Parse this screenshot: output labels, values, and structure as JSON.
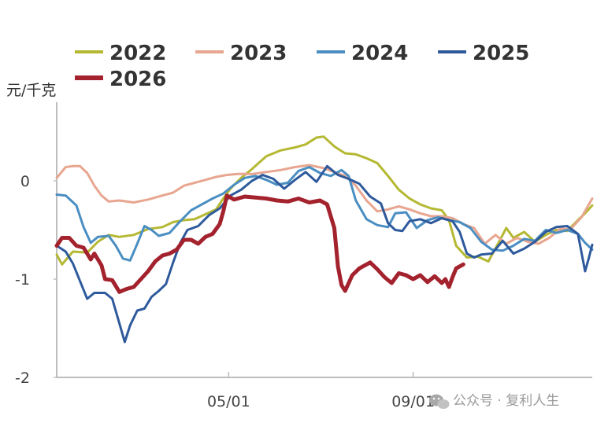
{
  "chart_data": {
    "type": "line",
    "ylabel": "元/千克",
    "ylim": [
      -2,
      0.8
    ],
    "xlim": [
      1,
      300
    ],
    "yticks": [
      {
        "value": 0,
        "label": "0"
      },
      {
        "value": -1,
        "label": "-1"
      },
      {
        "value": -2,
        "label": "-2"
      }
    ],
    "xticks": [
      {
        "value": 97,
        "label": "05/01"
      },
      {
        "value": 200,
        "label": "09/01"
      }
    ],
    "legend": "top",
    "grid": false,
    "series": [
      {
        "name": "2022",
        "color": "#b5b832",
        "width": 3,
        "points": [
          [
            1,
            -0.75
          ],
          [
            4,
            -0.85
          ],
          [
            10,
            -0.72
          ],
          [
            18,
            -0.73
          ],
          [
            24,
            -0.62
          ],
          [
            30,
            -0.55
          ],
          [
            36,
            -0.57
          ],
          [
            44,
            -0.55
          ],
          [
            52,
            -0.49
          ],
          [
            60,
            -0.47
          ],
          [
            66,
            -0.42
          ],
          [
            72,
            -0.4
          ],
          [
            78,
            -0.39
          ],
          [
            84,
            -0.34
          ],
          [
            90,
            -0.29
          ],
          [
            94,
            -0.18
          ],
          [
            98,
            -0.08
          ],
          [
            104,
            0.03
          ],
          [
            110,
            0.12
          ],
          [
            118,
            0.25
          ],
          [
            126,
            0.31
          ],
          [
            134,
            0.34
          ],
          [
            140,
            0.37
          ],
          [
            146,
            0.44
          ],
          [
            150,
            0.45
          ],
          [
            156,
            0.35
          ],
          [
            162,
            0.28
          ],
          [
            168,
            0.27
          ],
          [
            174,
            0.23
          ],
          [
            180,
            0.18
          ],
          [
            186,
            0.05
          ],
          [
            192,
            -0.09
          ],
          [
            198,
            -0.18
          ],
          [
            204,
            -0.24
          ],
          [
            210,
            -0.28
          ],
          [
            216,
            -0.3
          ],
          [
            220,
            -0.4
          ],
          [
            224,
            -0.66
          ],
          [
            230,
            -0.78
          ],
          [
            236,
            -0.77
          ],
          [
            242,
            -0.82
          ],
          [
            248,
            -0.62
          ],
          [
            252,
            -0.48
          ],
          [
            256,
            -0.58
          ],
          [
            262,
            -0.52
          ],
          [
            268,
            -0.62
          ],
          [
            274,
            -0.55
          ],
          [
            280,
            -0.5
          ],
          [
            286,
            -0.51
          ],
          [
            292,
            -0.4
          ],
          [
            296,
            -0.33
          ],
          [
            300,
            -0.25
          ]
        ]
      },
      {
        "name": "2023",
        "color": "#e8a690",
        "width": 3,
        "points": [
          [
            1,
            0.03
          ],
          [
            6,
            0.14
          ],
          [
            10,
            0.15
          ],
          [
            14,
            0.15
          ],
          [
            18,
            0.08
          ],
          [
            22,
            -0.05
          ],
          [
            26,
            -0.15
          ],
          [
            30,
            -0.21
          ],
          [
            36,
            -0.2
          ],
          [
            44,
            -0.22
          ],
          [
            52,
            -0.19
          ],
          [
            60,
            -0.15
          ],
          [
            66,
            -0.12
          ],
          [
            72,
            -0.05
          ],
          [
            78,
            -0.02
          ],
          [
            84,
            0.01
          ],
          [
            90,
            0.04
          ],
          [
            96,
            0.06
          ],
          [
            102,
            0.07
          ],
          [
            110,
            0.07
          ],
          [
            118,
            0.09
          ],
          [
            126,
            0.11
          ],
          [
            134,
            0.14
          ],
          [
            142,
            0.16
          ],
          [
            150,
            0.13
          ],
          [
            156,
            0.09
          ],
          [
            162,
            0.05
          ],
          [
            168,
            -0.05
          ],
          [
            174,
            -0.2
          ],
          [
            180,
            -0.31
          ],
          [
            186,
            -0.29
          ],
          [
            192,
            -0.26
          ],
          [
            198,
            -0.29
          ],
          [
            204,
            -0.33
          ],
          [
            210,
            -0.36
          ],
          [
            216,
            -0.36
          ],
          [
            222,
            -0.38
          ],
          [
            228,
            -0.44
          ],
          [
            234,
            -0.48
          ],
          [
            240,
            -0.64
          ],
          [
            246,
            -0.55
          ],
          [
            252,
            -0.64
          ],
          [
            258,
            -0.58
          ],
          [
            264,
            -0.62
          ],
          [
            270,
            -0.64
          ],
          [
            276,
            -0.58
          ],
          [
            282,
            -0.49
          ],
          [
            288,
            -0.49
          ],
          [
            294,
            -0.37
          ],
          [
            300,
            -0.18
          ]
        ]
      },
      {
        "name": "2024",
        "color": "#4a8ec2",
        "width": 3,
        "points": [
          [
            1,
            -0.14
          ],
          [
            6,
            -0.15
          ],
          [
            12,
            -0.25
          ],
          [
            16,
            -0.47
          ],
          [
            20,
            -0.63
          ],
          [
            24,
            -0.57
          ],
          [
            30,
            -0.56
          ],
          [
            34,
            -0.66
          ],
          [
            38,
            -0.79
          ],
          [
            42,
            -0.81
          ],
          [
            46,
            -0.64
          ],
          [
            50,
            -0.46
          ],
          [
            54,
            -0.5
          ],
          [
            58,
            -0.56
          ],
          [
            64,
            -0.53
          ],
          [
            70,
            -0.41
          ],
          [
            76,
            -0.3
          ],
          [
            82,
            -0.24
          ],
          [
            88,
            -0.18
          ],
          [
            94,
            -0.13
          ],
          [
            100,
            -0.04
          ],
          [
            106,
            0.03
          ],
          [
            112,
            0.05
          ],
          [
            118,
            0.01
          ],
          [
            124,
            -0.04
          ],
          [
            130,
            -0.02
          ],
          [
            136,
            0.1
          ],
          [
            142,
            0.14
          ],
          [
            148,
            0.08
          ],
          [
            154,
            0.05
          ],
          [
            160,
            0.11
          ],
          [
            164,
            0.05
          ],
          [
            168,
            -0.2
          ],
          [
            174,
            -0.39
          ],
          [
            180,
            -0.45
          ],
          [
            186,
            -0.47
          ],
          [
            190,
            -0.33
          ],
          [
            196,
            -0.32
          ],
          [
            202,
            -0.48
          ],
          [
            208,
            -0.4
          ],
          [
            214,
            -0.37
          ],
          [
            220,
            -0.4
          ],
          [
            226,
            -0.42
          ],
          [
            232,
            -0.48
          ],
          [
            238,
            -0.62
          ],
          [
            244,
            -0.7
          ],
          [
            250,
            -0.71
          ],
          [
            256,
            -0.66
          ],
          [
            262,
            -0.59
          ],
          [
            268,
            -0.61
          ],
          [
            274,
            -0.5
          ],
          [
            280,
            -0.53
          ],
          [
            286,
            -0.5
          ],
          [
            292,
            -0.54
          ],
          [
            296,
            -0.63
          ],
          [
            300,
            -0.7
          ]
        ]
      },
      {
        "name": "2025",
        "color": "#2e5a9c",
        "width": 3,
        "points": [
          [
            1,
            -0.66
          ],
          [
            6,
            -0.72
          ],
          [
            10,
            -0.84
          ],
          [
            14,
            -1.02
          ],
          [
            18,
            -1.2
          ],
          [
            22,
            -1.14
          ],
          [
            28,
            -1.14
          ],
          [
            32,
            -1.2
          ],
          [
            36,
            -1.45
          ],
          [
            39,
            -1.64
          ],
          [
            42,
            -1.47
          ],
          [
            46,
            -1.32
          ],
          [
            50,
            -1.3
          ],
          [
            54,
            -1.18
          ],
          [
            58,
            -1.12
          ],
          [
            62,
            -1.05
          ],
          [
            66,
            -0.83
          ],
          [
            70,
            -0.63
          ],
          [
            74,
            -0.5
          ],
          [
            80,
            -0.46
          ],
          [
            86,
            -0.35
          ],
          [
            92,
            -0.28
          ],
          [
            98,
            -0.15
          ],
          [
            104,
            -0.09
          ],
          [
            110,
            0.0
          ],
          [
            116,
            0.06
          ],
          [
            122,
            0.02
          ],
          [
            128,
            -0.08
          ],
          [
            134,
            0.01
          ],
          [
            140,
            0.09
          ],
          [
            146,
            -0.01
          ],
          [
            152,
            0.15
          ],
          [
            158,
            0.06
          ],
          [
            164,
            0.02
          ],
          [
            170,
            -0.03
          ],
          [
            176,
            -0.16
          ],
          [
            182,
            -0.23
          ],
          [
            186,
            -0.43
          ],
          [
            190,
            -0.5
          ],
          [
            194,
            -0.51
          ],
          [
            198,
            -0.41
          ],
          [
            204,
            -0.39
          ],
          [
            210,
            -0.43
          ],
          [
            216,
            -0.38
          ],
          [
            222,
            -0.41
          ],
          [
            226,
            -0.52
          ],
          [
            230,
            -0.74
          ],
          [
            234,
            -0.78
          ],
          [
            238,
            -0.75
          ],
          [
            244,
            -0.74
          ],
          [
            250,
            -0.61
          ],
          [
            256,
            -0.74
          ],
          [
            262,
            -0.69
          ],
          [
            268,
            -0.62
          ],
          [
            274,
            -0.52
          ],
          [
            280,
            -0.47
          ],
          [
            286,
            -0.46
          ],
          [
            292,
            -0.54
          ],
          [
            296,
            -0.92
          ],
          [
            298,
            -0.79
          ],
          [
            300,
            -0.65
          ]
        ]
      },
      {
        "name": "2026",
        "color": "#a3222d",
        "width": 5,
        "points": [
          [
            1,
            -0.66
          ],
          [
            4,
            -0.58
          ],
          [
            8,
            -0.58
          ],
          [
            12,
            -0.66
          ],
          [
            16,
            -0.68
          ],
          [
            20,
            -0.8
          ],
          [
            22,
            -0.74
          ],
          [
            26,
            -0.86
          ],
          [
            28,
            -1.0
          ],
          [
            32,
            -1.01
          ],
          [
            36,
            -1.13
          ],
          [
            40,
            -1.1
          ],
          [
            44,
            -1.08
          ],
          [
            48,
            -1.0
          ],
          [
            52,
            -0.92
          ],
          [
            56,
            -0.82
          ],
          [
            60,
            -0.76
          ],
          [
            64,
            -0.74
          ],
          [
            68,
            -0.7
          ],
          [
            72,
            -0.6
          ],
          [
            76,
            -0.6
          ],
          [
            80,
            -0.64
          ],
          [
            84,
            -0.57
          ],
          [
            88,
            -0.54
          ],
          [
            92,
            -0.44
          ],
          [
            94,
            -0.31
          ],
          [
            96,
            -0.15
          ],
          [
            100,
            -0.19
          ],
          [
            106,
            -0.16
          ],
          [
            112,
            -0.17
          ],
          [
            118,
            -0.18
          ],
          [
            124,
            -0.2
          ],
          [
            130,
            -0.21
          ],
          [
            136,
            -0.18
          ],
          [
            142,
            -0.22
          ],
          [
            148,
            -0.2
          ],
          [
            152,
            -0.24
          ],
          [
            156,
            -0.48
          ],
          [
            158,
            -0.87
          ],
          [
            160,
            -1.06
          ],
          [
            162,
            -1.12
          ],
          [
            166,
            -0.96
          ],
          [
            170,
            -0.89
          ],
          [
            176,
            -0.83
          ],
          [
            180,
            -0.9
          ],
          [
            184,
            -0.98
          ],
          [
            188,
            -1.04
          ],
          [
            192,
            -0.94
          ],
          [
            196,
            -0.96
          ],
          [
            200,
            -1.0
          ],
          [
            204,
            -0.96
          ],
          [
            208,
            -1.03
          ],
          [
            212,
            -0.97
          ],
          [
            216,
            -1.04
          ],
          [
            218,
            -1.0
          ],
          [
            220,
            -1.08
          ],
          [
            222,
            -0.98
          ],
          [
            224,
            -0.89
          ],
          [
            228,
            -0.85
          ]
        ]
      }
    ]
  },
  "watermark": {
    "icon": "wechat-icon",
    "text": "公众号 · 复利人生"
  }
}
